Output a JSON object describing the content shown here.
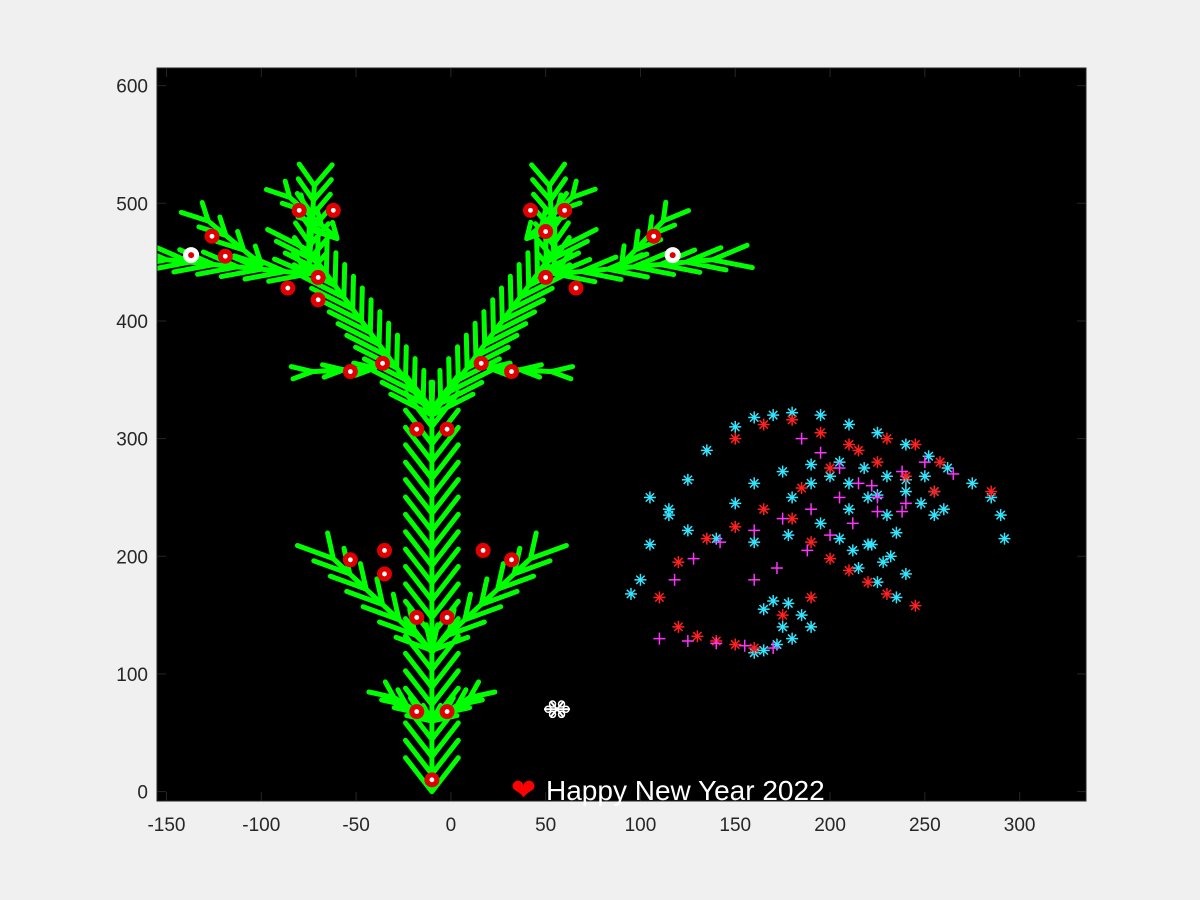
{
  "chart_data": {
    "type": "scatter",
    "title": "",
    "xlabel": "",
    "ylabel": "",
    "xlim": [
      -155,
      335
    ],
    "ylim": [
      -8,
      615
    ],
    "xticks": [
      -150,
      -100,
      -50,
      0,
      50,
      100,
      150,
      200,
      250,
      300
    ],
    "yticks": [
      0,
      100,
      200,
      300,
      400,
      500,
      600
    ],
    "xtick_labels": [
      "-150",
      "-100",
      "-50",
      "0",
      "50",
      "100",
      "150",
      "200",
      "250",
      "300"
    ],
    "ytick_labels": [
      "0",
      "100",
      "200",
      "300",
      "400",
      "500",
      "600"
    ],
    "grid": false,
    "legend": "none",
    "background_color": "#000000",
    "colors": {
      "branches": "#00ff00",
      "ornaments": "#e00000",
      "ornament_center": "#ffffff",
      "star_ornament": "#ffffff",
      "firework_cyan": "#33e5ff",
      "firework_red": "#ff2020",
      "firework_magenta": "#ff33ff",
      "heart": "#ff0000",
      "caption": "#ffffff"
    },
    "tree": {
      "trunk_x": -10,
      "trunk_y_range": [
        0,
        325
      ],
      "ornaments_red": [
        [
          -10,
          10
        ],
        [
          -18,
          68
        ],
        [
          -2,
          68
        ],
        [
          -18,
          148
        ],
        [
          -2,
          148
        ],
        [
          -35,
          185
        ],
        [
          -53,
          197
        ],
        [
          -35,
          205
        ],
        [
          17,
          205
        ],
        [
          32,
          197
        ],
        [
          -18,
          308
        ],
        [
          -2,
          308
        ],
        [
          -53,
          357
        ],
        [
          -36,
          364
        ],
        [
          16,
          364
        ],
        [
          32,
          357
        ],
        [
          -70,
          418
        ],
        [
          -86,
          428
        ],
        [
          -70,
          437
        ],
        [
          50,
          437
        ],
        [
          66,
          428
        ],
        [
          -119,
          455
        ],
        [
          -126,
          472
        ],
        [
          -80,
          494
        ],
        [
          -62,
          494
        ],
        [
          42,
          494
        ],
        [
          60,
          494
        ],
        [
          50,
          476
        ],
        [
          107,
          472
        ]
      ],
      "ornaments_white": [
        [
          -137,
          456
        ],
        [
          117,
          456
        ]
      ]
    },
    "snowflake": {
      "x": 56,
      "y": 70
    },
    "annotation": {
      "text": "Happy New Year 2022",
      "heart": "❤",
      "x": 52,
      "y": 0
    },
    "series": [
      {
        "marker": "*",
        "color": "#33e5ff",
        "x": [
          95,
          100,
          105,
          115,
          125,
          135,
          150,
          160,
          170,
          180,
          195,
          210,
          225,
          240,
          252,
          262,
          275,
          285,
          290,
          292,
          105,
          115,
          125,
          140,
          160,
          178,
          195,
          210,
          225,
          240,
          250,
          255,
          260,
          150,
          160,
          175,
          190,
          205,
          218,
          230,
          240,
          248,
          255,
          180,
          190,
          200,
          210,
          220,
          230,
          235,
          222,
          212,
          205,
          215,
          225,
          235,
          232,
          220,
          228,
          240,
          165,
          170,
          178,
          185,
          190,
          180,
          172,
          165,
          160,
          175
        ],
        "y": [
          168,
          180,
          210,
          240,
          265,
          290,
          310,
          318,
          320,
          322,
          320,
          312,
          305,
          295,
          285,
          275,
          262,
          250,
          235,
          215,
          250,
          235,
          222,
          215,
          212,
          218,
          228,
          240,
          252,
          265,
          268,
          255,
          240,
          245,
          262,
          272,
          278,
          280,
          275,
          268,
          255,
          245,
          235,
          250,
          262,
          268,
          262,
          250,
          235,
          220,
          210,
          205,
          215,
          190,
          178,
          165,
          200,
          210,
          195,
          185,
          155,
          162,
          160,
          150,
          140,
          130,
          125,
          120,
          118,
          140
        ]
      },
      {
        "marker": "*",
        "color": "#ff2020",
        "x": [
          110,
          120,
          135,
          150,
          165,
          185,
          200,
          215,
          230,
          245,
          258,
          285,
          150,
          165,
          180,
          195,
          210,
          225,
          240,
          255,
          180,
          190,
          200,
          210,
          220,
          230,
          245,
          120,
          130,
          140,
          150,
          160,
          175,
          190
        ],
        "y": [
          165,
          195,
          215,
          225,
          240,
          258,
          275,
          290,
          300,
          295,
          280,
          255,
          300,
          312,
          316,
          305,
          295,
          280,
          268,
          255,
          232,
          212,
          198,
          188,
          178,
          168,
          158,
          140,
          132,
          128,
          125,
          122,
          150,
          165
        ]
      },
      {
        "marker": "+",
        "color": "#ff33ff",
        "x": [
          118,
          128,
          142,
          160,
          175,
          190,
          205,
          222,
          238,
          250,
          265,
          160,
          172,
          188,
          200,
          212,
          225,
          240,
          185,
          195,
          205,
          215,
          225,
          238,
          110,
          125,
          140,
          155,
          170
        ],
        "y": [
          180,
          198,
          212,
          222,
          232,
          240,
          250,
          260,
          272,
          280,
          270,
          180,
          190,
          205,
          218,
          228,
          238,
          245,
          300,
          288,
          275,
          262,
          250,
          238,
          130,
          128,
          126,
          124,
          122
        ]
      }
    ]
  }
}
